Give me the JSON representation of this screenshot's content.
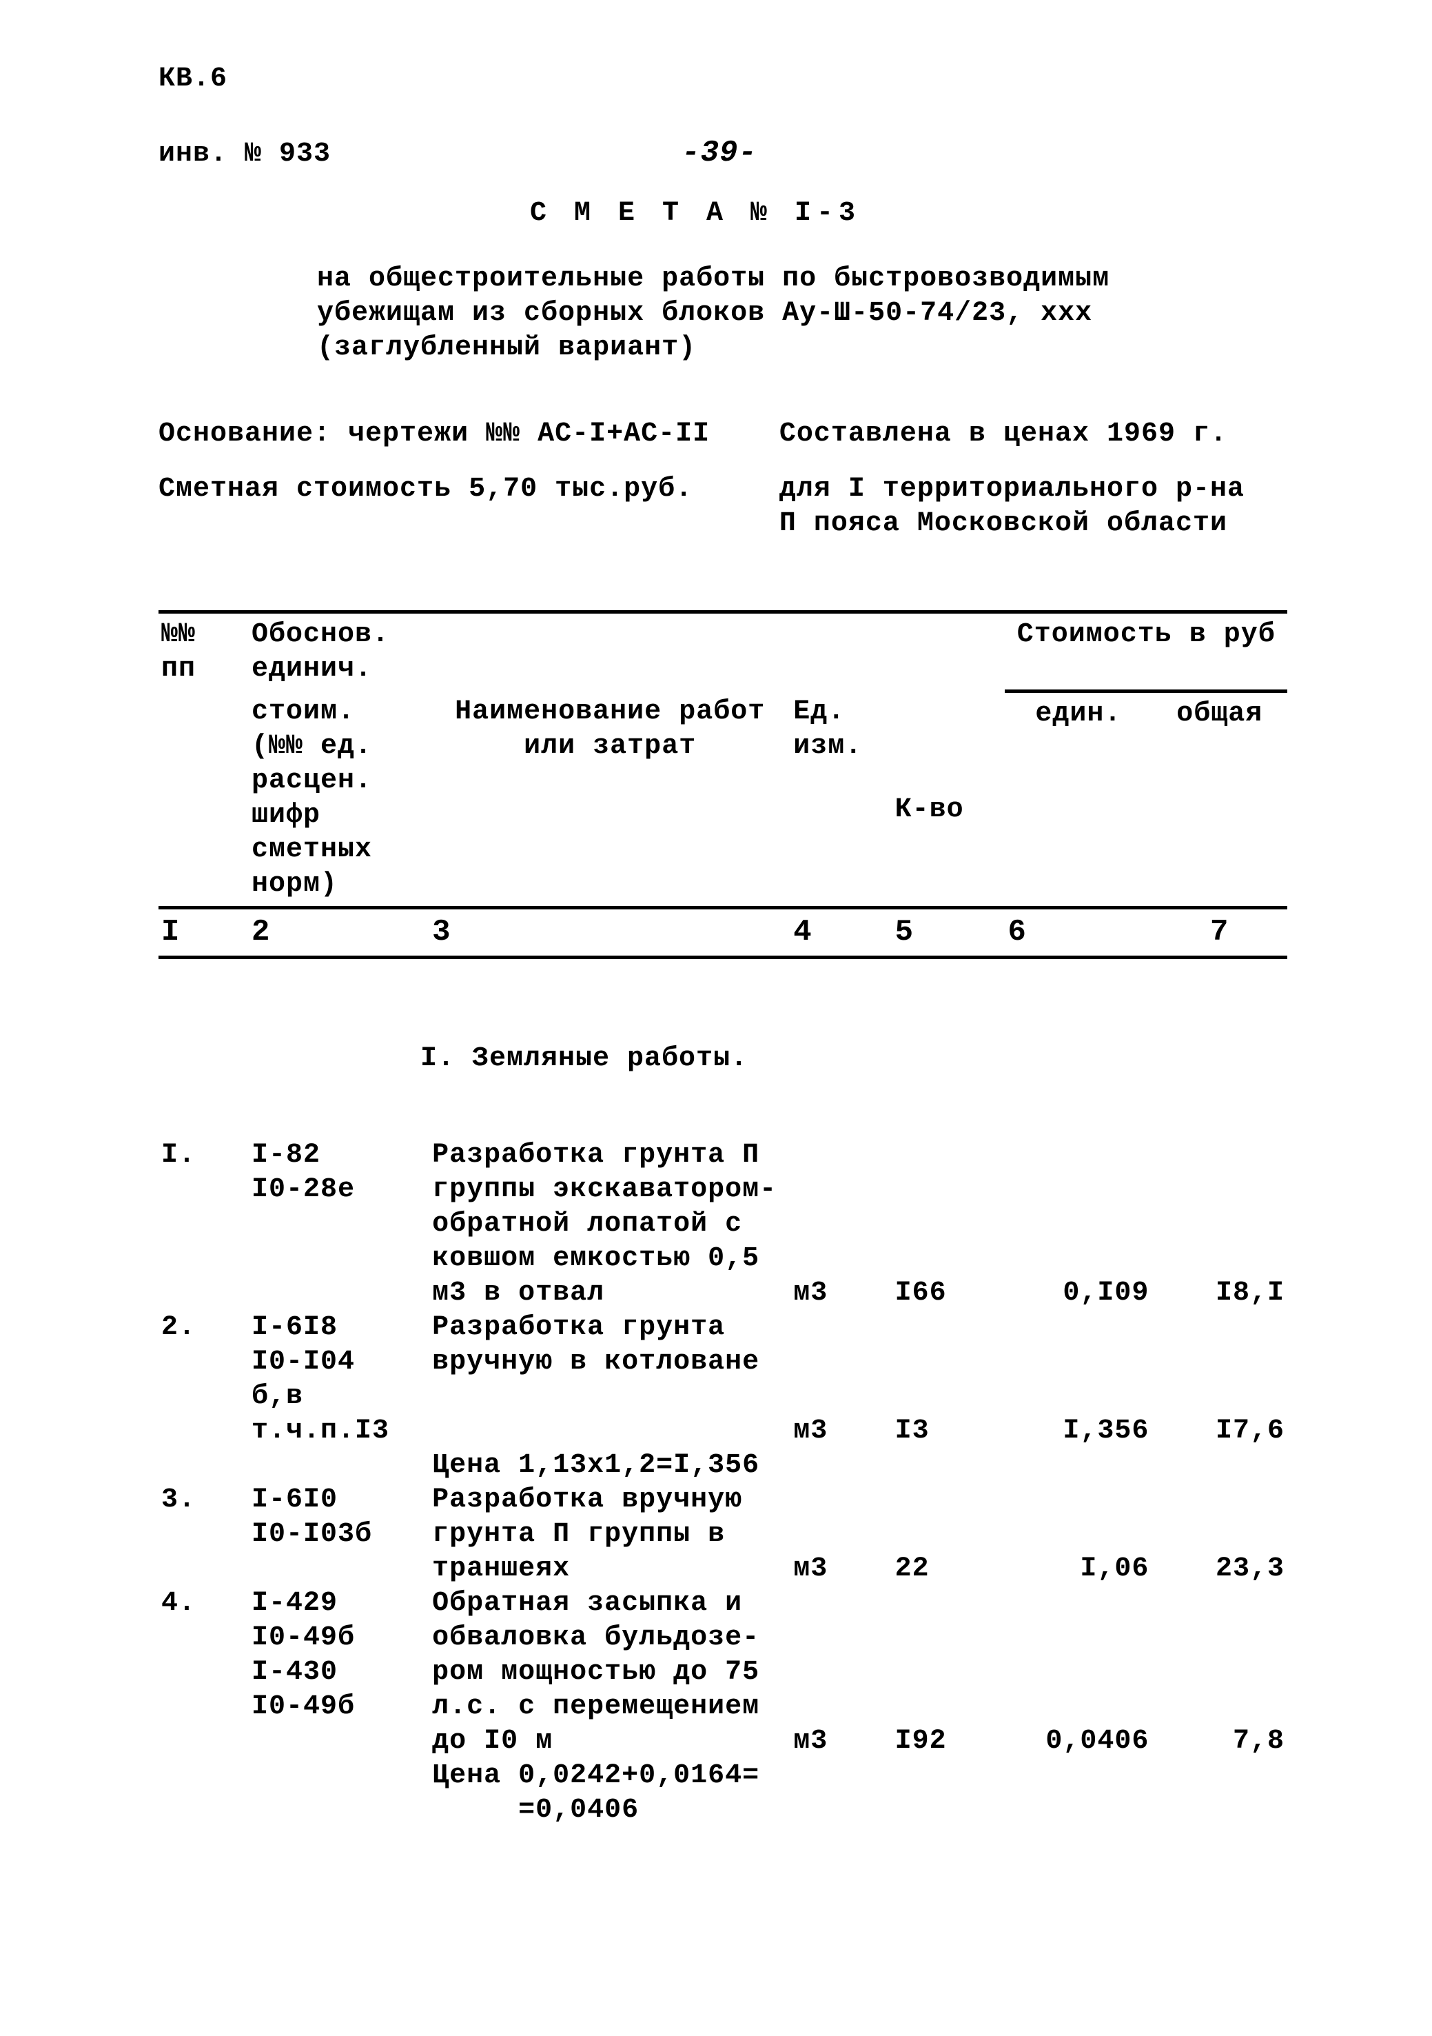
{
  "header": {
    "doc_id": "КВ.6",
    "inv_num": "инв. № 933",
    "page_num": "-39-",
    "title": "С М Е Т А  № I-3",
    "subtitle_line1": "на общестроительные работы по быстровозводимым",
    "subtitle_line2": "убежищам из сборных блоков Ау-Ш-50-74/23, ххх",
    "subtitle_line3": "(заглубленный вариант)",
    "basis_label": "Основание: чертежи №№ АС-I+АС-II",
    "prices_label": "Составлена в ценах 1969 г.",
    "cost_label": "Сметная стоимость 5,70 тыс.руб.",
    "region_line1": "для I территориального р-на",
    "region_line2": "П пояса Московской области"
  },
  "table_header": {
    "col1_line1": "№№",
    "col1_line2": "пп",
    "col2_line1": "Обоснов.",
    "col2_line2": "единич.",
    "col2_line3": "стоим.",
    "col2_line4": "(№№ ед.",
    "col2_line5": "расцен.",
    "col2_line6": "шифр",
    "col2_line7": "сметных",
    "col2_line8": "норм)",
    "col3_line1": "Наименование работ",
    "col3_line2": "или затрат",
    "col4_line1": "Ед.",
    "col4_line2": "изм.",
    "col5": "К-во",
    "col67_header": "Стоимость в руб",
    "col6": "един.",
    "col7": "общая",
    "num1": "I",
    "num2": "2",
    "num3": "3",
    "num4": "4",
    "num5": "5",
    "num6": "6",
    "num7": "7"
  },
  "section": {
    "title": "I. Земляные работы."
  },
  "rows": [
    {
      "num": "I.",
      "basis": "I-82\nI0-28е",
      "name": "Разработка грунта П\nгруппы экскаватором-\nобратной лопатой с\nковшом емкостью 0,5\nм3 в отвал",
      "unit": "м3",
      "qty": "I66",
      "rate": "0,I09",
      "total": "I8,I",
      "note": ""
    },
    {
      "num": "2.",
      "basis": "I-6I8\nI0-I04\nб,в\nт.ч.п.I3",
      "name": "Разработка грунта\nвручную в котловане",
      "unit": "м3",
      "qty": "I3",
      "rate": "I,356",
      "total": "I7,6",
      "note": "Цена 1,13х1,2=I,356"
    },
    {
      "num": "3.",
      "basis": "I-6I0\nI0-I03б",
      "name": "Разработка вручную\nгрунта П группы в\nтраншеях",
      "unit": "м3",
      "qty": "22",
      "rate": "I,06",
      "total": "23,3",
      "note": ""
    },
    {
      "num": "4.",
      "basis": "I-429\nI0-49б\nI-430\nI0-49б",
      "name": "Обратная засыпка и\nобваловка бульдозе-\nром мощностью до 75\nл.с. с перемещением\nдо I0 м",
      "unit": "м3",
      "qty": "I92",
      "rate": "0,0406",
      "total": "7,8",
      "note": "Цена 0,0242+0,0164=\n     =0,0406"
    }
  ]
}
